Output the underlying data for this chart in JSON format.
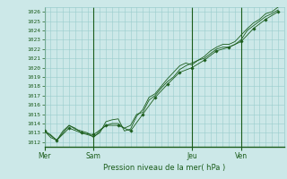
{
  "title": "Pression niveau de la mer( hPa )",
  "ylabel_values": [
    1012,
    1013,
    1014,
    1015,
    1016,
    1017,
    1018,
    1019,
    1020,
    1021,
    1022,
    1023,
    1024,
    1025,
    1026
  ],
  "ylim": [
    1011.5,
    1026.5
  ],
  "background_color": "#cce8e8",
  "grid_color": "#99cccc",
  "line_color": "#1a5c1a",
  "day_labels": [
    "Mer",
    "Sam",
    "Jeu",
    "Ven"
  ],
  "day_positions": [
    0,
    48,
    144,
    192
  ],
  "xlim": [
    0,
    234
  ],
  "series1_x": [
    0,
    6,
    12,
    18,
    24,
    30,
    36,
    42,
    48,
    54,
    60,
    66,
    72,
    78,
    84,
    90,
    96,
    102,
    108,
    114,
    120,
    126,
    132,
    138,
    144,
    150,
    156,
    162,
    168,
    174,
    180,
    186,
    192,
    198,
    204,
    210,
    216,
    222,
    228
  ],
  "series1_y": [
    1013.2,
    1012.8,
    1012.2,
    1013.0,
    1013.8,
    1013.4,
    1013.2,
    1013.0,
    1012.5,
    1013.2,
    1013.8,
    1014.0,
    1014.0,
    1013.5,
    1013.8,
    1015.0,
    1015.2,
    1016.5,
    1017.0,
    1017.8,
    1018.5,
    1019.0,
    1019.8,
    1020.2,
    1020.5,
    1020.8,
    1021.0,
    1021.5,
    1022.0,
    1022.2,
    1022.2,
    1022.5,
    1023.0,
    1024.0,
    1024.5,
    1025.0,
    1025.5,
    1025.8,
    1026.2
  ],
  "series2_x": [
    0,
    6,
    12,
    18,
    24,
    30,
    36,
    42,
    48,
    54,
    60,
    66,
    72,
    78,
    84,
    90,
    96,
    102,
    108,
    114,
    120,
    126,
    132,
    138,
    144,
    150,
    156,
    162,
    168,
    174,
    180,
    186,
    192,
    198,
    204,
    210,
    216,
    222,
    228
  ],
  "series2_y": [
    1013.2,
    1012.5,
    1012.2,
    1013.2,
    1013.8,
    1013.5,
    1013.0,
    1012.8,
    1012.6,
    1013.0,
    1014.2,
    1014.4,
    1014.5,
    1013.2,
    1013.4,
    1014.8,
    1015.5,
    1016.8,
    1017.2,
    1018.0,
    1018.8,
    1019.5,
    1020.2,
    1020.5,
    1020.3,
    1020.8,
    1021.2,
    1021.8,
    1022.2,
    1022.5,
    1022.5,
    1022.8,
    1023.5,
    1024.2,
    1024.8,
    1025.2,
    1025.8,
    1026.0,
    1026.5
  ],
  "series3_x": [
    0,
    12,
    24,
    36,
    48,
    60,
    72,
    84,
    96,
    108,
    120,
    132,
    144,
    156,
    168,
    180,
    192,
    204,
    216,
    228
  ],
  "series3_y": [
    1013.2,
    1012.2,
    1013.5,
    1013.0,
    1012.8,
    1013.8,
    1013.8,
    1013.2,
    1015.0,
    1016.8,
    1018.2,
    1019.5,
    1020.0,
    1020.8,
    1021.8,
    1022.2,
    1022.8,
    1024.2,
    1025.2,
    1026.0
  ],
  "figsize": [
    3.2,
    2.0
  ],
  "dpi": 100
}
